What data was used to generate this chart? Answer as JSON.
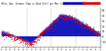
{
  "title": "Milw. Wea. Outdoor Temp",
  "subtitle": "vs Wind Chill per Min (24h)",
  "background_color": "#ffffff",
  "plot_bg_color": "#ffffff",
  "bar_color": "#0000bb",
  "dot_color": "#dd0000",
  "legend_bar_blue": "#0000bb",
  "legend_bar_red": "#dd0000",
  "grid_color": "#999999",
  "text_color": "#000000",
  "n_points": 1440,
  "ylim_min": -20,
  "ylim_max": 55,
  "baseline": 0
}
